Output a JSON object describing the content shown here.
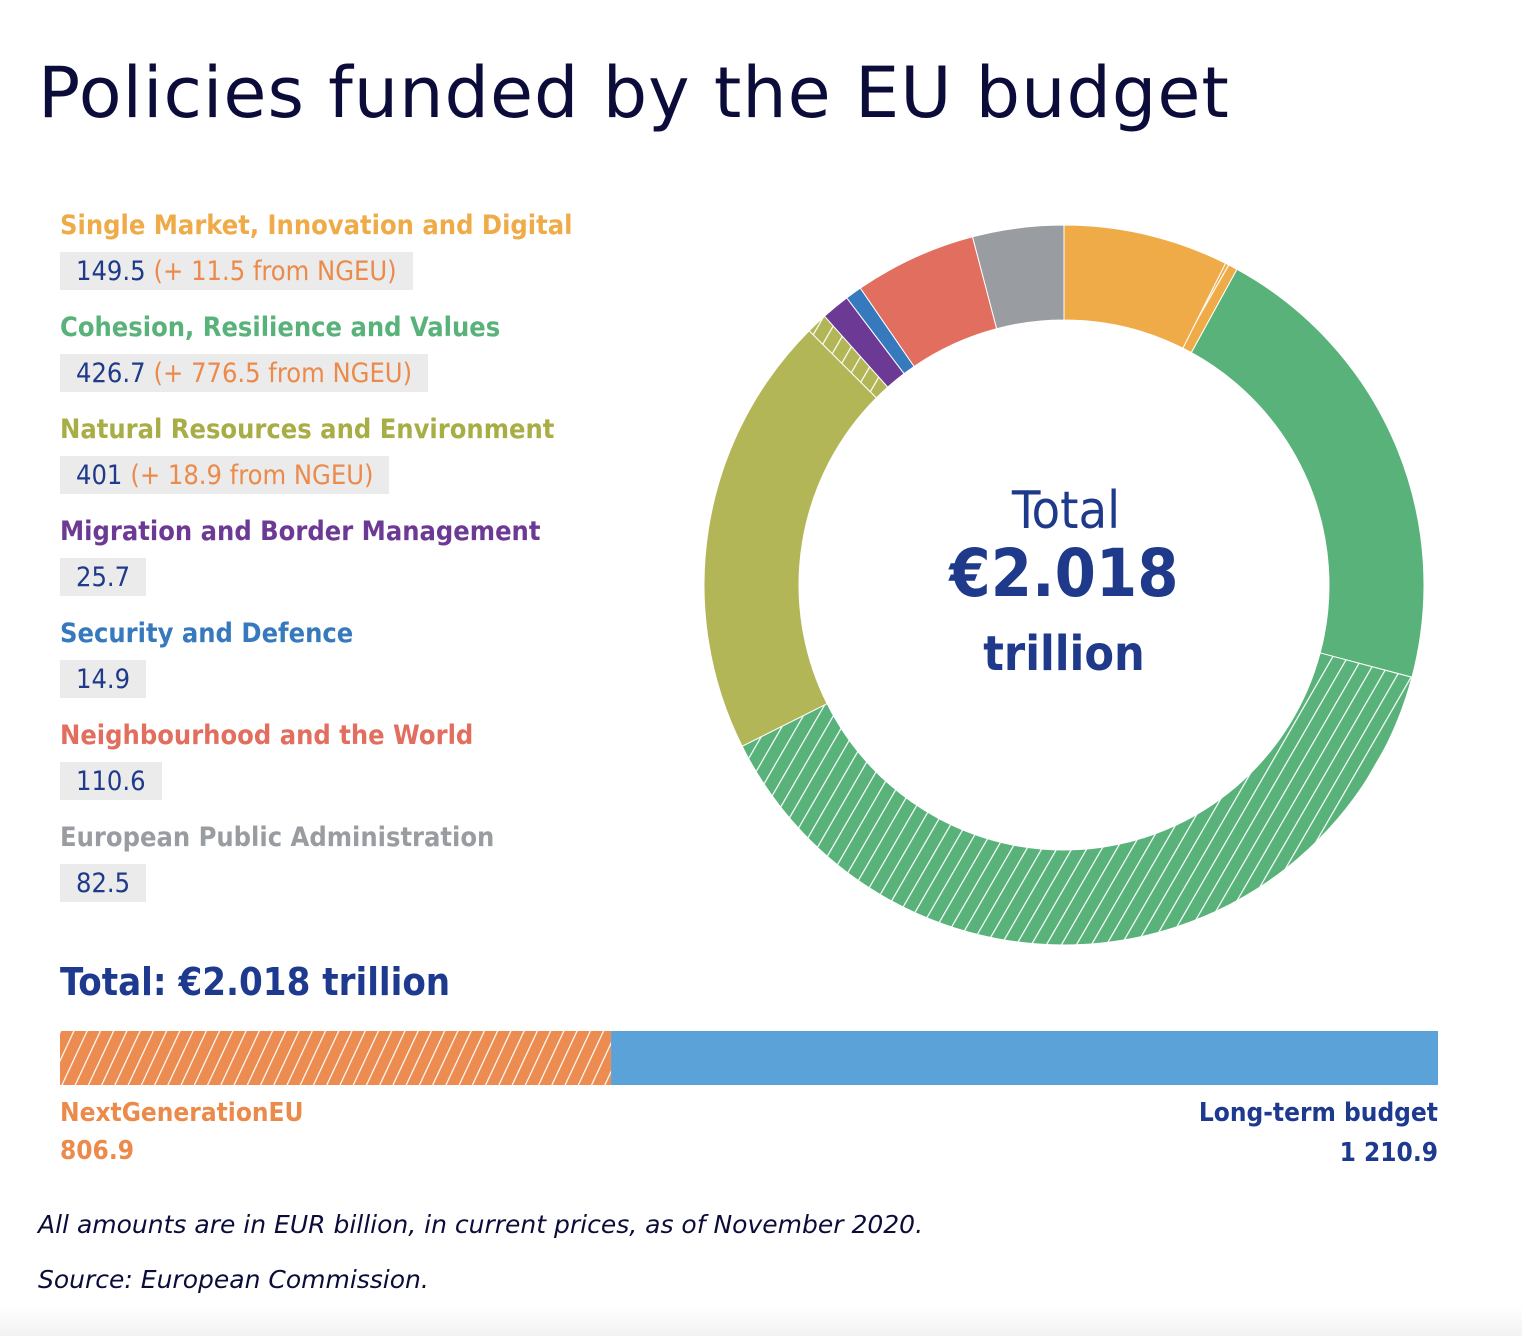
{
  "title": "Policies funded by the EU budget",
  "colors": {
    "single_market": "#eeab48",
    "cohesion": "#58b27a",
    "natural": "#b2b656",
    "migration": "#6c3995",
    "security": "#3679bd",
    "neighbourhood": "#e26e60",
    "administration": "#999ca1",
    "ngeu": "#ec8c50",
    "long_term": "#5aa2d8",
    "value_text": "#1f3a8a",
    "title_text": "#0b0c3a"
  },
  "legend": [
    {
      "name": "Single Market, Innovation and Digital",
      "value": "149.5",
      "ngeu": "(+ 11.5 from NGEU)",
      "color": "#eeab48"
    },
    {
      "name": "Cohesion, Resilience and Values",
      "value": "426.7",
      "ngeu": "(+ 776.5 from NGEU)",
      "color": "#58b27a"
    },
    {
      "name": "Natural Resources and Environment",
      "value": "401",
      "ngeu": "(+ 18.9 from NGEU)",
      "color": "#b2b656"
    },
    {
      "name": "Migration and Border Management",
      "value": "25.7",
      "color": "#6c3995"
    },
    {
      "name": "Security and Defence",
      "value": "14.9",
      "color": "#3679bd"
    },
    {
      "name": "Neighbourhood and the World",
      "value": "110.6",
      "color": "#e26e60"
    },
    {
      "name": "European Public Administration",
      "value": "82.5",
      "color": "#999ca1"
    }
  ],
  "center": {
    "label": "Total",
    "amount": "€2.018",
    "unit": "trillion"
  },
  "total_line": "Total: €2.018 trillion",
  "bar": {
    "ngeu_label": "NextGenerationEU",
    "ngeu_value": "806.9",
    "long_term_label": "Long-term budget",
    "long_term_value": "1 210.9"
  },
  "footnotes": {
    "amounts": "All amounts are in EUR billion, in current prices, as of November 2020.",
    "source": "Source: European Commission."
  },
  "chart_data": [
    {
      "type": "pie",
      "style": "donut",
      "order": "clockwise from top",
      "center_label": [
        "Total",
        "€2.018",
        "trillion"
      ],
      "series": [
        {
          "name": "Single Market, Innovation and Digital",
          "value": 149.5,
          "ngeu": 11.5,
          "color": "#eeab48"
        },
        {
          "name": "Cohesion, Resilience and Values",
          "value": 426.7,
          "ngeu": 776.5,
          "color": "#58b27a"
        },
        {
          "name": "Natural Resources and Environment",
          "value": 401,
          "ngeu": 18.9,
          "color": "#b2b656"
        },
        {
          "name": "Migration and Border Management",
          "value": 25.7,
          "ngeu": 0,
          "color": "#6c3995"
        },
        {
          "name": "Security and Defence",
          "value": 14.9,
          "ngeu": 0,
          "color": "#3679bd"
        },
        {
          "name": "Neighbourhood and the World",
          "value": 110.6,
          "ngeu": 0,
          "color": "#e26e60"
        },
        {
          "name": "European Public Administration",
          "value": 82.5,
          "ngeu": 0,
          "color": "#999ca1"
        }
      ],
      "ngeu_pattern": "white diagonal hatching"
    },
    {
      "type": "bar",
      "orientation": "horizontal stacked",
      "title": "Total: €2.018 trillion",
      "series": [
        {
          "name": "NextGenerationEU",
          "value": 806.9,
          "color": "#ec8c50",
          "pattern": "hatched"
        },
        {
          "name": "Long-term budget",
          "value": 1210.9,
          "color": "#5aa2d8"
        }
      ]
    }
  ]
}
